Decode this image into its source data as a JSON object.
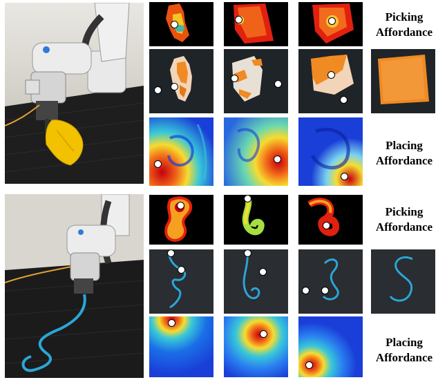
{
  "labels": {
    "picking_top": [
      "Picking",
      "Affordance"
    ],
    "placing_top": [
      "Placing",
      "Affordance"
    ],
    "picking_bottom": [
      "Picking",
      "Affordance"
    ],
    "placing_bottom": [
      "Placing",
      "Affordance"
    ]
  },
  "colors": {
    "dark_bg": "#1c2026",
    "cloth_orange": "#f08a22",
    "cloth_yellow": "#f5c400",
    "rope_blue": "#2ba6d8",
    "heat_red": "#d8101a",
    "heat_blue": "#1a3fd8",
    "marker_fill": "#ffffff",
    "marker_stroke": "#000000"
  },
  "icons": [
    "robot-arm-cloth-photo",
    "robot-arm-rope-photo"
  ]
}
